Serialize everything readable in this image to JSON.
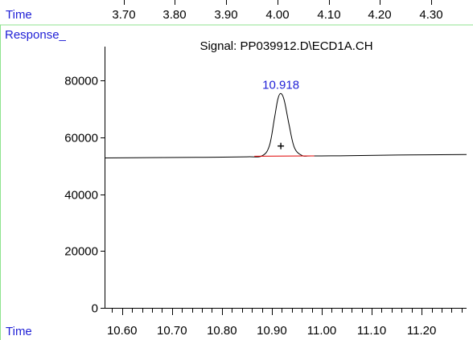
{
  "top_axis": {
    "label": "Time",
    "ticks": [
      "3.70",
      "3.80",
      "3.90",
      "4.00",
      "4.10",
      "4.20",
      "4.30"
    ]
  },
  "colors": {
    "label_blue": "#1f1fd6",
    "frame_green": "#8fe38f",
    "trace": "#000000",
    "baseline": "#e00000"
  },
  "chart_data": {
    "type": "line",
    "title": "Signal: PP039912.D\\ECD1A.CH",
    "ylabel": "Response_",
    "xlabel": "Time",
    "xlim": [
      10.565,
      11.29
    ],
    "ylim": [
      0,
      92000
    ],
    "yticks": [
      0,
      20000,
      40000,
      60000,
      80000
    ],
    "ytick_labels": [
      "0",
      "20000",
      "40000",
      "60000",
      "80000"
    ],
    "xticks": [
      10.6,
      10.7,
      10.8,
      10.9,
      11.0,
      11.1,
      11.2
    ],
    "xtick_labels": [
      "10.60",
      "10.70",
      "10.80",
      "10.90",
      "11.00",
      "11.10",
      "11.20"
    ],
    "grid": false,
    "series": [
      {
        "x": [
          10.565,
          10.65,
          10.75,
          10.85,
          10.88,
          10.895,
          10.905,
          10.912,
          10.918,
          10.925,
          10.935,
          10.945,
          10.96,
          10.98,
          11.05,
          11.15,
          11.29
        ],
        "y": [
          52800,
          52900,
          53000,
          53200,
          53500,
          57000,
          66500,
          73500,
          75500,
          73000,
          64000,
          56500,
          53700,
          53500,
          53600,
          53800,
          54000
        ]
      }
    ],
    "peaks": [
      {
        "retention_time": "10.918",
        "x": 10.918,
        "y": 75500,
        "marker_y": 57000
      }
    ],
    "baseline": {
      "x_start": 10.865,
      "x_end": 10.985,
      "y_start": 53400,
      "y_end": 53500
    }
  }
}
